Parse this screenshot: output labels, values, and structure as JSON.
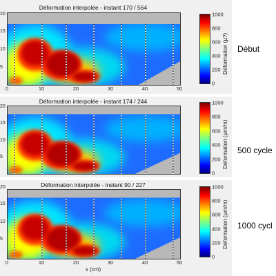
{
  "panels": [
    {
      "title": "Déformation interpolée - instant 170 / 564",
      "cbar_label": "Déformation (µ?)",
      "side_label": "Début"
    },
    {
      "title": "Déformation interpolée - instant 174 / 244",
      "cbar_label": "Déformation (µm/m)",
      "side_label": "500 cycle"
    },
    {
      "title": "Déformation interpolée - instant 90 / 227",
      "cbar_label": "Déformation (µm/m)",
      "side_label": "1000 cycl"
    }
  ],
  "xlabel": "x (cm)",
  "yticks_visible": [
    "0",
    "5",
    "10",
    "15",
    "20"
  ],
  "colors": {
    "figure_bg": "#f0f0f0",
    "colormap": "jet"
  },
  "chart_data": {
    "type": "heatmap",
    "colormap": "jet",
    "x_ticks": [
      0,
      10,
      20,
      30,
      40,
      50
    ],
    "xlim": [
      0,
      50
    ],
    "c_ticks": [
      0,
      200,
      400,
      600,
      800,
      1000
    ],
    "clim": [
      0,
      1000
    ],
    "gauge_lines_x": [
      2,
      10,
      17,
      25,
      33,
      40,
      48
    ]
  }
}
